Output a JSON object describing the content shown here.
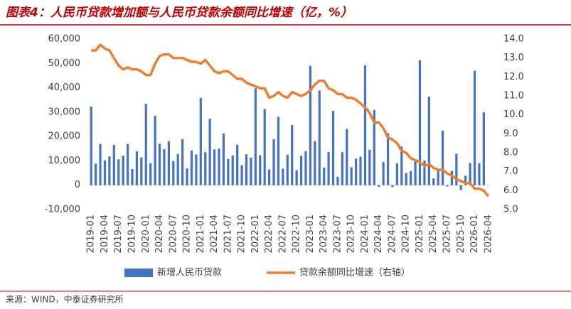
{
  "chart_data": {
    "type": "bar_line",
    "title": "图表4：人民币贷款增加额与人民币贷款余额同比增速（亿，%）",
    "source": "来源：WIND，中泰证券研究所",
    "categories": [
      "2019-01",
      null,
      null,
      "2019-04",
      null,
      null,
      "2019-07",
      null,
      null,
      "2019-10",
      null,
      null,
      "2020-01",
      null,
      null,
      "2020-04",
      null,
      null,
      "2020-07",
      null,
      null,
      "2020-10",
      null,
      null,
      "2021-01",
      null,
      null,
      "2021-04",
      null,
      null,
      "2021-07",
      null,
      null,
      "2021-10",
      null,
      null,
      "2022-01",
      null,
      null,
      "2022-04",
      null,
      null,
      "2022-07",
      null,
      null,
      "2022-10",
      null,
      null,
      "2023-01",
      null,
      null,
      "2023-04",
      null,
      null,
      "2023-07",
      null,
      null,
      "2023-10",
      null,
      null,
      "2024-01",
      null,
      null,
      "2024-04",
      null,
      null,
      "2024-07",
      null,
      null,
      "2024-10",
      null,
      null,
      "2025-01",
      null,
      null,
      "2025-04",
      null,
      null,
      "2025-07",
      null,
      null,
      "2025-10",
      null,
      null,
      "2026-01",
      null,
      null,
      "2026-04"
    ],
    "series": [
      {
        "name": "新增人民币贷款",
        "color": "#4472c4",
        "kind": "bar",
        "values": [
          32300,
          8858,
          16900,
          10200,
          11800,
          16600,
          10600,
          12100,
          16900,
          6613,
          13900,
          11400,
          33400,
          9057,
          28500,
          17000,
          14800,
          18100,
          9927,
          12800,
          19000,
          6898,
          14300,
          12600,
          35800,
          13600,
          27300,
          14700,
          15000,
          21200,
          10800,
          12200,
          16600,
          8262,
          12700,
          11300,
          39800,
          12300,
          31300,
          6454,
          18900,
          28100,
          6790,
          12500,
          24700,
          6152,
          12100,
          14000,
          49000,
          18100,
          38900,
          7188,
          13600,
          30500,
          3459,
          13600,
          23100,
          7384,
          10900,
          11700,
          49200,
          14500,
          30900,
          -730,
          9500,
          21300,
          -770,
          9000,
          15900,
          5000,
          5800,
          9900,
          51300,
          10100,
          36400,
          2800,
          6200,
          22400,
          -500,
          5900,
          12900,
          -2000,
          3900,
          9100,
          47000,
          9000,
          30000,
          null
        ]
      },
      {
        "name": "贷款余额同比增速（右轴）",
        "color": "#ed7d31",
        "kind": "line",
        "axis": "y2",
        "values": [
          13.4,
          13.4,
          13.7,
          13.5,
          13.4,
          13.0,
          12.6,
          12.4,
          12.5,
          12.4,
          12.4,
          12.3,
          12.1,
          12.1,
          12.7,
          13.1,
          13.2,
          13.2,
          13.0,
          13.0,
          13.0,
          12.9,
          12.8,
          12.8,
          12.7,
          12.9,
          12.6,
          12.3,
          12.2,
          12.3,
          12.3,
          12.1,
          11.9,
          11.9,
          11.7,
          11.6,
          11.5,
          11.4,
          11.4,
          10.9,
          11.0,
          11.2,
          11.0,
          10.9,
          11.2,
          11.1,
          11.0,
          11.1,
          11.3,
          11.6,
          11.8,
          11.8,
          11.4,
          11.3,
          11.1,
          11.1,
          10.9,
          10.9,
          10.8,
          10.6,
          10.4,
          10.1,
          9.6,
          9.6,
          9.3,
          8.8,
          8.7,
          8.5,
          8.1,
          8.0,
          7.7,
          7.6,
          7.5,
          7.3,
          7.4,
          7.2,
          7.1,
          7.1,
          6.9,
          6.8,
          6.6,
          6.5,
          6.4,
          6.4,
          6.1,
          6.1,
          6.0,
          5.7
        ]
      }
    ],
    "ylim": [
      -10000,
      60000
    ],
    "yticks": [
      {
        "value": -10000,
        "label": "-10,000"
      },
      0,
      {
        "value": 10000,
        "label": "10,000"
      },
      {
        "value": 20000,
        "label": "20,000"
      },
      {
        "value": 30000,
        "label": "30,000"
      },
      {
        "value": 40000,
        "label": "40,000"
      },
      {
        "value": 50000,
        "label": "50,000"
      },
      {
        "value": 60000,
        "label": "60,000"
      }
    ],
    "y2lim": [
      5,
      14
    ],
    "y2ticks": [
      {
        "value": 5,
        "label": "5.0"
      },
      {
        "value": 6,
        "label": "6.0"
      },
      {
        "value": 7,
        "label": "7.0"
      },
      {
        "value": 8,
        "label": "8.0"
      },
      {
        "value": 9,
        "label": "9.0"
      },
      {
        "value": 10,
        "label": "10.0"
      },
      {
        "value": 11,
        "label": "11.0"
      },
      {
        "value": 12,
        "label": "12.0"
      },
      {
        "value": 13,
        "label": "13.0"
      },
      {
        "value": 14,
        "label": "14.0"
      }
    ],
    "grid": false
  }
}
